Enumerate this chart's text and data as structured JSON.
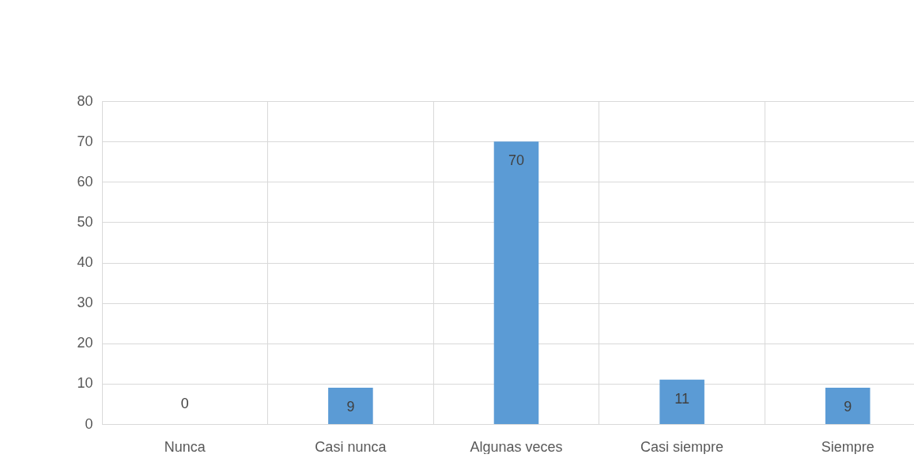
{
  "chart_data": {
    "type": "bar",
    "categories": [
      "Nunca",
      "Casi nunca",
      "Algunas veces",
      "Casi siempre",
      "Siempre"
    ],
    "values": [
      0,
      9,
      70,
      11,
      9
    ],
    "color": "#5b9bd5",
    "ylim": [
      0,
      80
    ],
    "yticks": [
      0,
      10,
      20,
      30,
      40,
      50,
      60,
      70,
      80
    ],
    "grid": true,
    "data_labels": true
  }
}
